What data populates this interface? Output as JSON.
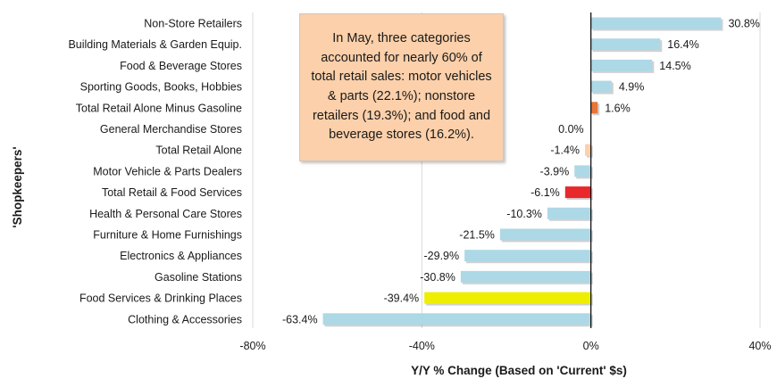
{
  "chart_data": {
    "type": "bar",
    "orientation": "horizontal",
    "categories": [
      "Non-Store Retailers",
      "Building Materials & Garden Equip.",
      "Food & Beverage Stores",
      "Sporting Goods, Books, Hobbies",
      "Total Retail Alone Minus Gasoline",
      "General Merchandise Stores",
      "Total Retail Alone",
      "Motor Vehicle & Parts Dealers",
      "Total Retail & Food Services",
      "Health & Personal Care Stores",
      "Furniture & Home Furnishings",
      "Electronics & Appliances",
      "Gasoline Stations",
      "Food Services & Drinking Places",
      "Clothing & Accessories"
    ],
    "values": [
      30.8,
      16.4,
      14.5,
      4.9,
      1.6,
      0.0,
      -1.4,
      -3.9,
      -6.1,
      -10.3,
      -21.5,
      -29.9,
      -30.8,
      -39.4,
      -63.4
    ],
    "value_labels": [
      "30.8%",
      "16.4%",
      "14.5%",
      "4.9%",
      "1.6%",
      "0.0%",
      "-1.4%",
      "-3.9%",
      "-6.1%",
      "-10.3%",
      "-21.5%",
      "-29.9%",
      "-30.8%",
      "-39.4%",
      "-63.4%"
    ],
    "bar_colors": [
      "#add8e6",
      "#add8e6",
      "#add8e6",
      "#add8e6",
      "#e87636",
      "#add8e6",
      "#fbd0aa",
      "#add8e6",
      "#e8282a",
      "#add8e6",
      "#add8e6",
      "#add8e6",
      "#add8e6",
      "#eeee00",
      "#add8e6"
    ],
    "xlim": [
      -80,
      40
    ],
    "xticks": [
      -80,
      -40,
      0,
      40
    ],
    "xtick_labels": [
      "-80%",
      "-40%",
      "0%",
      "40%"
    ],
    "xlabel": "Y/Y % Change (Based on 'Current' $s)",
    "ylabel": "'Shopkeepers'",
    "grid": "vertical",
    "annotation": "In May, three categories accounted for nearly 60% of total retail sales: motor vehicles & parts (22.1%); nonstore retailers (19.3%); and food and beverage stores (16.2%)."
  }
}
